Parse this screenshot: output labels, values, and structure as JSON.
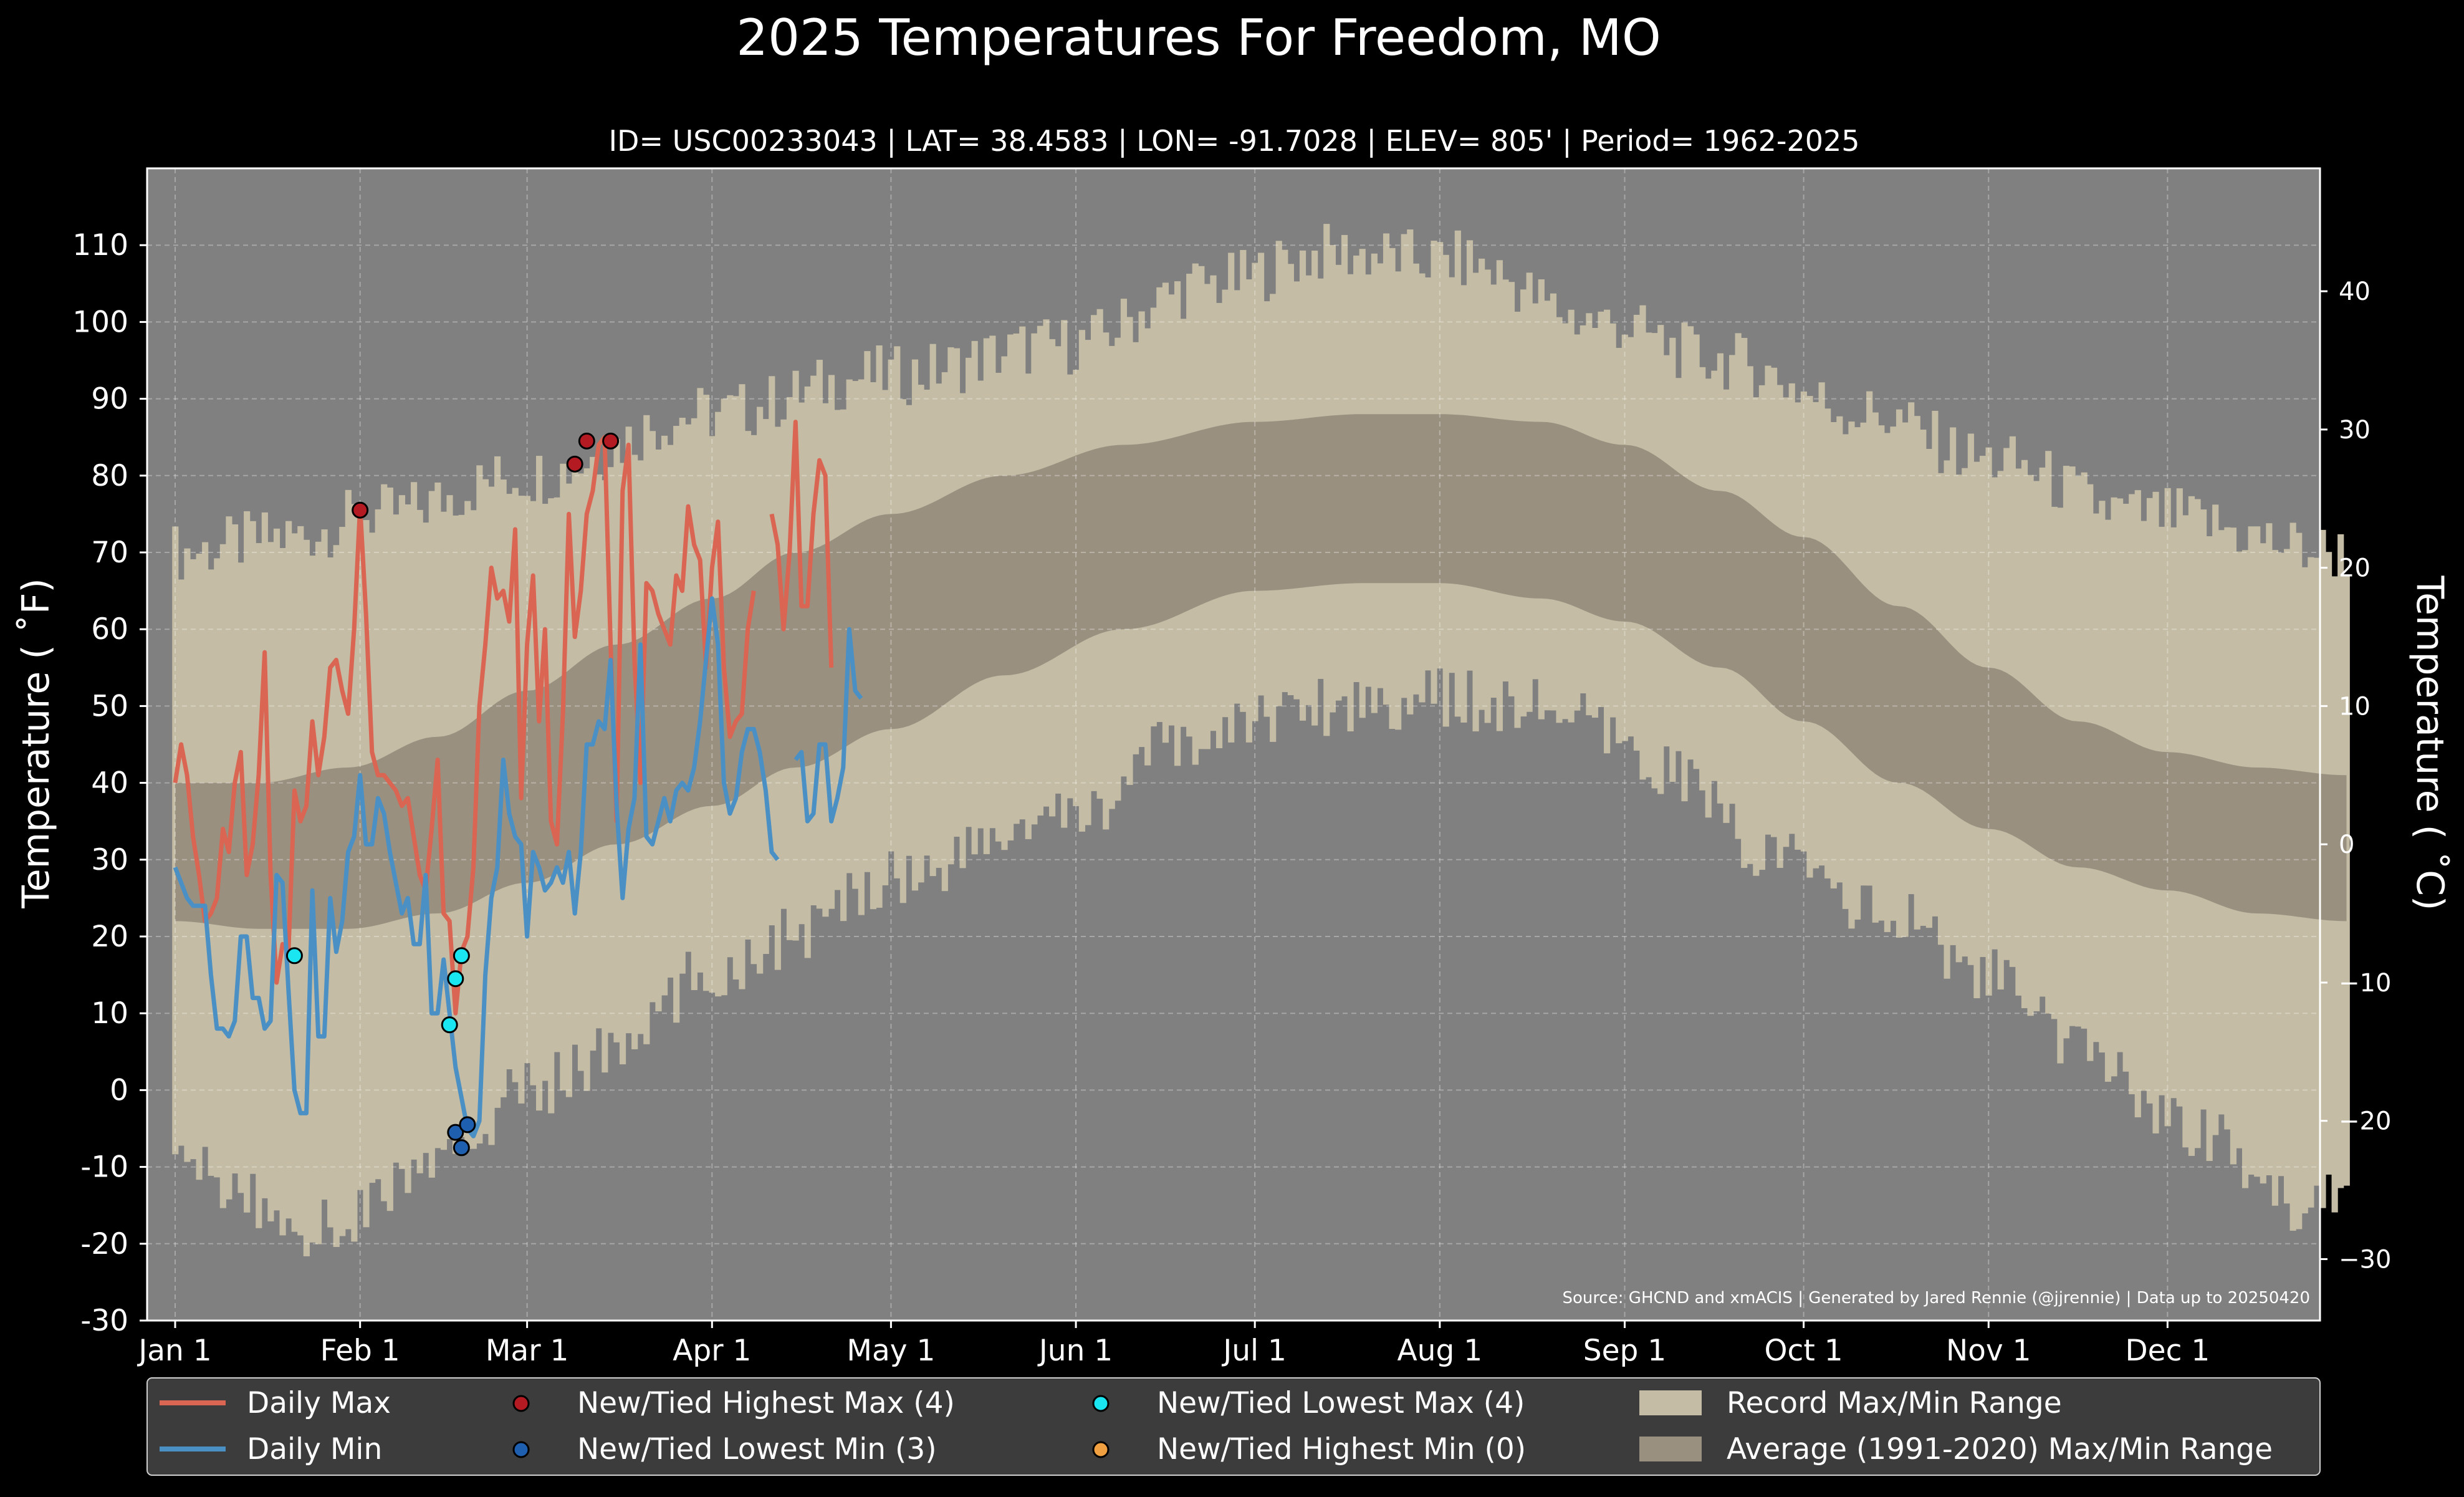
{
  "chart_data": {
    "type": "area",
    "title": "2025 Temperatures For Freedom, MO",
    "subtitle": "ID= USC00233043 | LAT= 38.4583 | LON= -91.7028 | ELEV= 805' | Period= 1962-2025",
    "ylabel_left": "Temperature ($^\\circ$F)",
    "ylabel_right": "Temperature ($^\\circ$C)",
    "ylabel_left_display": "Temperature ( ˚F)",
    "ylabel_right_display": "Temperature ( ˚C)",
    "source": "Source: GHCND and xmACIS | Generated by Jared Rennie (@jjrennie) | Data up to 20250420",
    "ylim_f": [
      -30,
      120
    ],
    "yticks_f": [
      "-30",
      "-20",
      "-10",
      "0",
      "10",
      "20",
      "30",
      "40",
      "50",
      "60",
      "70",
      "80",
      "90",
      "100",
      "110"
    ],
    "yticks_c": [
      "−30",
      "−20",
      "−10",
      "0",
      "10",
      "20",
      "30",
      "40"
    ],
    "x_label_days": [
      1,
      32,
      60,
      91,
      121,
      152,
      182,
      213,
      244,
      274,
      305,
      335
    ],
    "x_labels": [
      "Jan 1",
      "Feb 1",
      "Mar 1",
      "Apr 1",
      "May 1",
      "Jun 1",
      "Jul 1",
      "Aug 1",
      "Sep 1",
      "Oct 1",
      "Nov 1",
      "Dec 1"
    ],
    "grid": true,
    "legend_position": "bottom",
    "colors": {
      "background": "#000000",
      "plot_bg": "#808080",
      "record_range": "#c4bca4",
      "normal_range": "#9a9080",
      "daily_max": "#d96552",
      "daily_min": "#4a90c4",
      "highest_max": "#b31a22",
      "lowest_min": "#1f5fb0",
      "lowest_max": "#19e6f0",
      "highest_min": "#f0a040",
      "legend_bg": "#3c3c3c"
    },
    "record_max_knots": [
      [
        1,
        70
      ],
      [
        20,
        72
      ],
      [
        35,
        75
      ],
      [
        60,
        80
      ],
      [
        90,
        88
      ],
      [
        120,
        93
      ],
      [
        150,
        97
      ],
      [
        175,
        105
      ],
      [
        195,
        109
      ],
      [
        215,
        108
      ],
      [
        240,
        100
      ],
      [
        260,
        95
      ],
      [
        285,
        88
      ],
      [
        305,
        82
      ],
      [
        330,
        75
      ],
      [
        365,
        70
      ]
    ],
    "record_min_knots": [
      [
        1,
        -10
      ],
      [
        25,
        -18
      ],
      [
        45,
        -10
      ],
      [
        60,
        0
      ],
      [
        75,
        5
      ],
      [
        90,
        15
      ],
      [
        105,
        20
      ],
      [
        121,
        28
      ],
      [
        150,
        35
      ],
      [
        170,
        45
      ],
      [
        190,
        50
      ],
      [
        210,
        51
      ],
      [
        230,
        50
      ],
      [
        250,
        42
      ],
      [
        270,
        30
      ],
      [
        290,
        22
      ],
      [
        305,
        15
      ],
      [
        320,
        5
      ],
      [
        340,
        -5
      ],
      [
        356,
        -15
      ],
      [
        365,
        -12
      ]
    ],
    "normal_max_knots": [
      [
        1,
        40
      ],
      [
        15,
        40
      ],
      [
        30,
        42
      ],
      [
        45,
        46
      ],
      [
        60,
        52
      ],
      [
        75,
        58
      ],
      [
        91,
        64
      ],
      [
        105,
        70
      ],
      [
        121,
        75
      ],
      [
        140,
        80
      ],
      [
        160,
        84
      ],
      [
        182,
        87
      ],
      [
        200,
        88
      ],
      [
        213,
        88
      ],
      [
        230,
        87
      ],
      [
        244,
        84
      ],
      [
        260,
        78
      ],
      [
        274,
        72
      ],
      [
        290,
        63
      ],
      [
        305,
        55
      ],
      [
        320,
        48
      ],
      [
        335,
        44
      ],
      [
        350,
        42
      ],
      [
        365,
        41
      ]
    ],
    "normal_min_knots": [
      [
        1,
        22
      ],
      [
        15,
        21
      ],
      [
        30,
        21
      ],
      [
        45,
        23
      ],
      [
        60,
        27
      ],
      [
        75,
        32
      ],
      [
        91,
        37
      ],
      [
        105,
        42
      ],
      [
        121,
        47
      ],
      [
        140,
        54
      ],
      [
        160,
        60
      ],
      [
        182,
        65
      ],
      [
        200,
        66
      ],
      [
        213,
        66
      ],
      [
        230,
        64
      ],
      [
        244,
        61
      ],
      [
        260,
        55
      ],
      [
        274,
        48
      ],
      [
        290,
        40
      ],
      [
        305,
        34
      ],
      [
        320,
        29
      ],
      [
        335,
        26
      ],
      [
        350,
        23
      ],
      [
        365,
        22
      ]
    ],
    "series": [
      {
        "name": "Daily Max",
        "days_start": 1,
        "values": [
          40,
          45,
          41,
          33,
          28,
          22,
          23,
          25,
          34,
          31,
          40,
          44,
          28,
          32,
          41,
          57,
          28,
          14,
          19,
          18,
          39,
          35,
          37,
          48,
          41,
          46,
          55,
          56,
          52,
          49,
          60,
          76,
          62,
          44,
          41,
          41,
          40,
          39,
          37,
          38,
          33,
          28,
          26,
          34,
          43,
          23,
          22,
          10,
          18,
          20,
          29,
          50,
          58,
          68,
          64,
          65,
          61,
          73,
          38,
          58,
          67,
          48,
          60,
          35,
          32,
          49,
          75,
          59,
          65,
          75,
          78,
          84,
          85,
          58,
          35,
          78,
          84,
          56,
          40,
          66,
          65,
          62,
          60,
          58,
          67,
          65,
          76,
          71,
          69,
          55,
          68,
          74,
          55,
          46,
          48,
          49,
          60,
          65,
          null,
          null,
          75,
          71,
          60,
          70,
          87,
          63,
          63,
          75,
          82,
          80,
          55
        ]
      },
      {
        "name": "Daily Min",
        "days_start": 1,
        "values": [
          29,
          27,
          25,
          24,
          24,
          24,
          15,
          8,
          8,
          7,
          9,
          20,
          20,
          12,
          12,
          8,
          9,
          28,
          27,
          13,
          0,
          -3,
          -3,
          26,
          7,
          7,
          25,
          18,
          22,
          31,
          33,
          41,
          32,
          32,
          38,
          36,
          31,
          27,
          23,
          25,
          19,
          19,
          28,
          10,
          10,
          17,
          10,
          3,
          -1,
          -5,
          -6,
          -4,
          15,
          25,
          29,
          43,
          36,
          33,
          32,
          20,
          31,
          29,
          26,
          27,
          29,
          27,
          31,
          23,
          31,
          45,
          45,
          48,
          47,
          56,
          37,
          25,
          34,
          38,
          58,
          33,
          32,
          35,
          38,
          35,
          39,
          40,
          39,
          42,
          48,
          56,
          64,
          58,
          40,
          36,
          38,
          44,
          47,
          47,
          44,
          39,
          31,
          30,
          null,
          null,
          43,
          44,
          35,
          36,
          45,
          45,
          35,
          38,
          42,
          60,
          52,
          51
        ]
      }
    ],
    "markers": {
      "highest_max": [
        [
          32,
          75.5
        ],
        [
          68,
          81.5
        ],
        [
          70,
          84.5
        ],
        [
          74,
          84.5
        ]
      ],
      "lowest_min": [
        [
          48,
          -5.5
        ],
        [
          49,
          -7.5
        ],
        [
          50,
          -4.5
        ]
      ],
      "lowest_max": [
        [
          21,
          17.5
        ],
        [
          47,
          8.5
        ],
        [
          48,
          14.5
        ],
        [
          49,
          17.5
        ]
      ],
      "highest_min": []
    },
    "legend": {
      "daily_max": "Daily Max",
      "daily_min": "Daily Min",
      "highest_max": "New/Tied Highest Max (4)",
      "lowest_min": "New/Tied Lowest Min (3)",
      "lowest_max": "New/Tied Lowest Max (4)",
      "highest_min": "New/Tied Highest Min (0)",
      "record_range": "Record Max/Min Range",
      "normal_range": "Average (1991-2020) Max/Min Range"
    }
  }
}
